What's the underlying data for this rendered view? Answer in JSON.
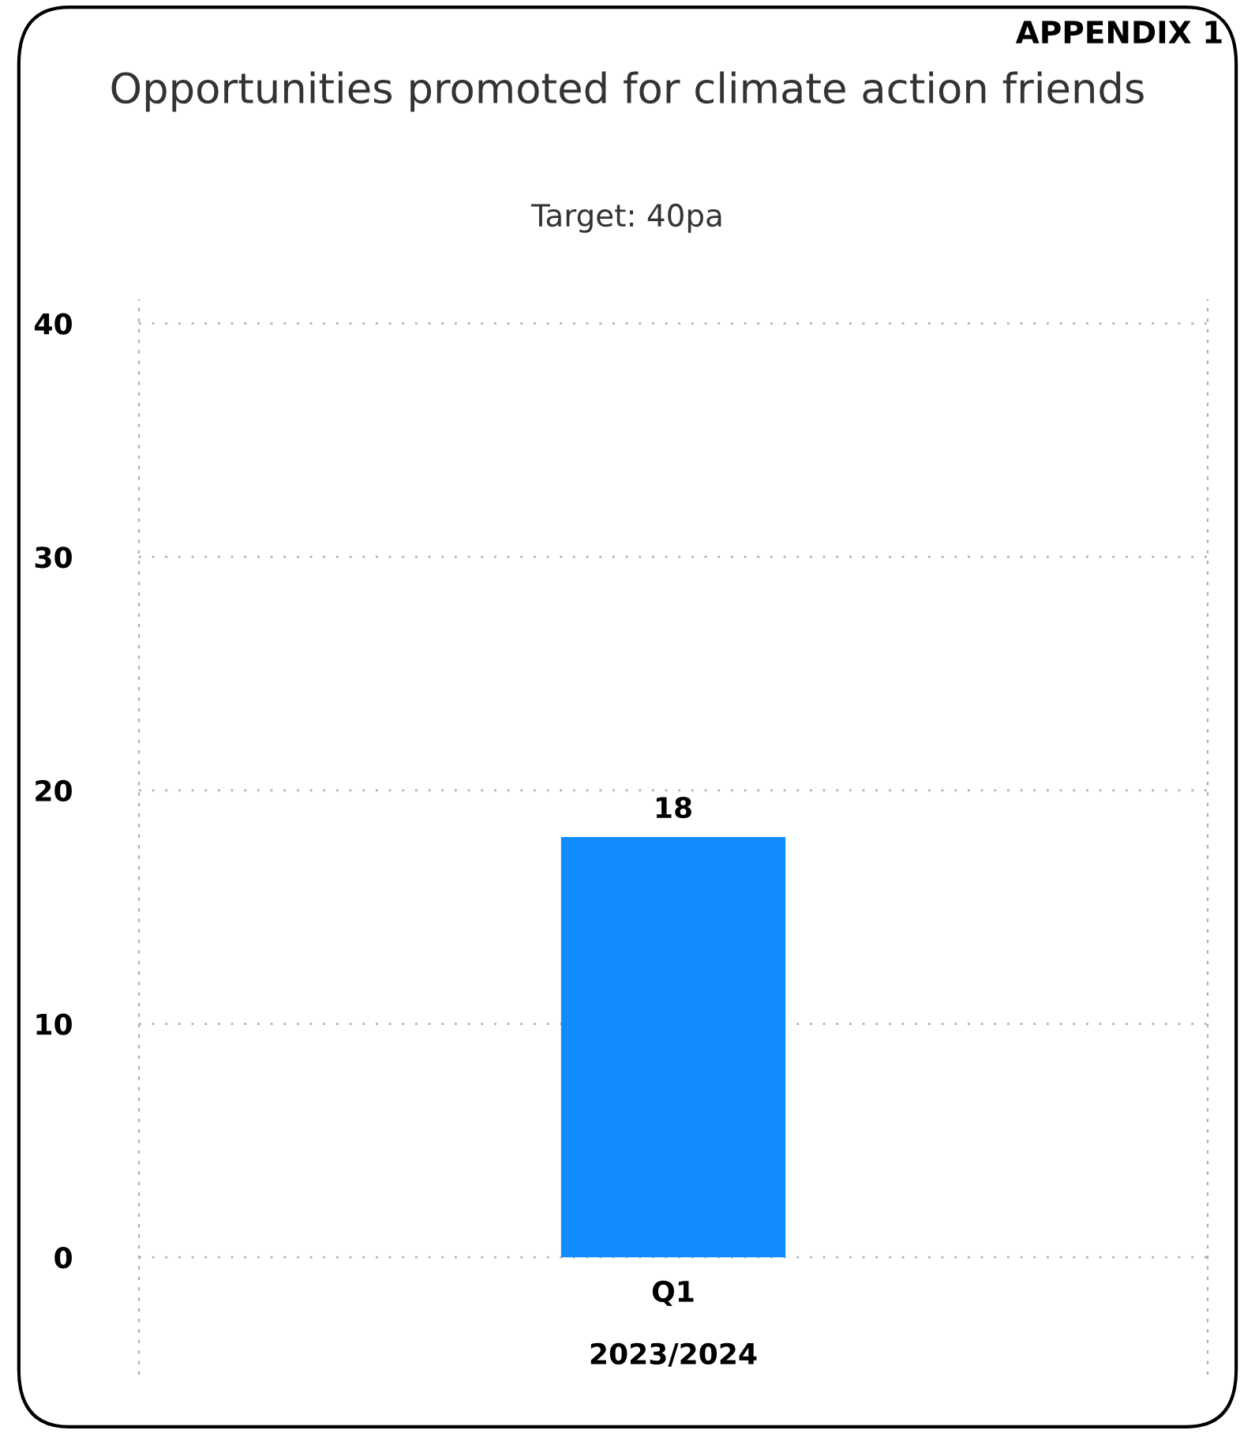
{
  "chart_data": {
    "type": "bar",
    "title": "Opportunities promoted for climate action friends",
    "subtitle": "Target: 40pa",
    "annotations": [
      "APPENDIX 1"
    ],
    "categories": [
      "Q1"
    ],
    "xlabel": "2023/2024",
    "values": [
      18
    ],
    "color": "#118dff",
    "data_labels": true,
    "ylim": [
      -5,
      41
    ],
    "yticks": [
      0,
      10,
      20,
      30,
      40
    ],
    "grid": "y"
  }
}
